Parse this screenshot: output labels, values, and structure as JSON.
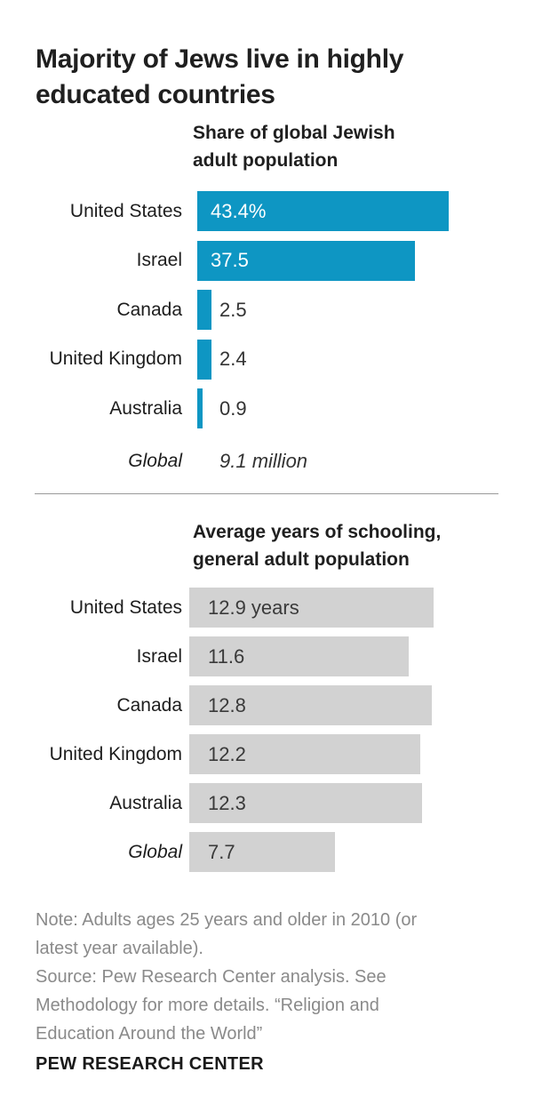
{
  "title": "Majority of Jews live in highly\neducated countries",
  "chart_data": [
    {
      "type": "bar",
      "title": "Share of global Jewish\nadult population",
      "categories": [
        "United States",
        "Israel",
        "Canada",
        "United Kingdom",
        "Australia"
      ],
      "values": [
        43.4,
        37.5,
        2.5,
        2.4,
        0.9
      ],
      "value_labels": [
        "43.4%",
        "37.5",
        "2.5",
        "2.4",
        "0.9"
      ],
      "bar_color": "#0e96c3",
      "xlim": [
        0,
        43.4
      ],
      "orientation": "horizontal",
      "grid": false,
      "legend": false,
      "global_label": "Global",
      "global_value": "9.1 million"
    },
    {
      "type": "bar",
      "title": "Average years of schooling,\ngeneral adult population",
      "categories": [
        "United States",
        "Israel",
        "Canada",
        "United Kingdom",
        "Australia",
        "Global"
      ],
      "values": [
        12.9,
        11.6,
        12.8,
        12.2,
        12.3,
        7.7
      ],
      "value_labels": [
        "12.9 years",
        "11.6",
        "12.8",
        "12.2",
        "12.3",
        "7.7"
      ],
      "italic_categories": [
        "Global"
      ],
      "bar_color": "#d2d2d2",
      "value_position": "inside",
      "xlim": [
        0,
        12.9
      ],
      "orientation": "horizontal",
      "grid": false,
      "legend": false
    }
  ],
  "note": {
    "text": "Note: Adults ages 25 years and older in 2010 (or\nlatest year available).\nSource: Pew Research Center analysis. See\nMethodology for more details. “Religion and\nEducation Around the World”"
  },
  "footer": "PEW RESEARCH CENTER"
}
